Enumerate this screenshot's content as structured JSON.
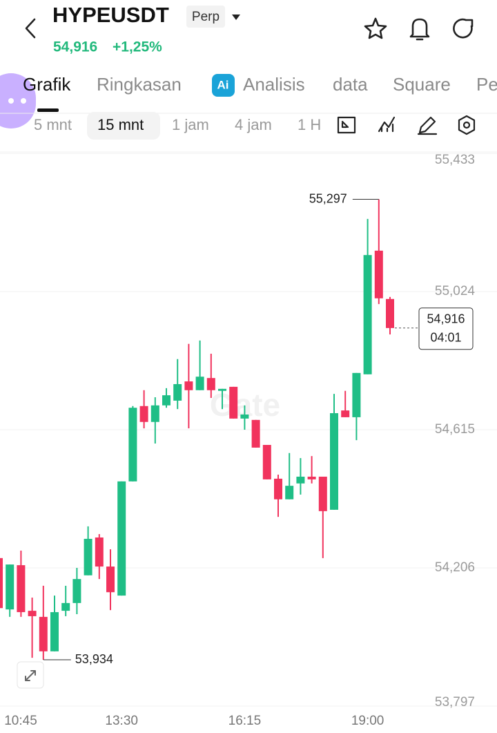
{
  "header": {
    "symbol": "HYPEUSDT",
    "badge": "Perp",
    "price": "54,916",
    "change": "+1,25%"
  },
  "tabs": [
    "Grafik",
    "Ringkasan",
    "Analisis",
    "data",
    "Square",
    "Pe"
  ],
  "intervals": [
    "5 mnt",
    "15 mnt",
    "1 jam",
    "4 jam",
    "1 H"
  ],
  "watermark": "Gate",
  "chart_data": {
    "type": "candlestick",
    "categories": [
      "10:45",
      null,
      null,
      null,
      null,
      null,
      null,
      null,
      null,
      null,
      null,
      "13:30",
      null,
      null,
      null,
      null,
      null,
      null,
      null,
      null,
      null,
      null,
      "16:15",
      null,
      null,
      null,
      null,
      null,
      null,
      null,
      null,
      null,
      null,
      "19:00",
      null,
      null
    ],
    "open": [
      54.235,
      54.083,
      54.214,
      54.079,
      54.061,
      53.959,
      54.079,
      54.102,
      54.184,
      54.296,
      54.21,
      54.124,
      54.462,
      54.685,
      54.638,
      54.687,
      54.701,
      54.758,
      54.732,
      54.768,
      54.73,
      54.742,
      54.648,
      54.644,
      54.57,
      54.47,
      54.409,
      54.456,
      54.476,
      54.476,
      54.378,
      54.672,
      54.652,
      54.779,
      55.145,
      55.002
    ],
    "high": [
      54.235,
      54.216,
      54.257,
      54.118,
      54.153,
      54.124,
      54.153,
      54.206,
      54.329,
      54.306,
      54.261,
      54.462,
      54.685,
      54.732,
      54.711,
      54.738,
      54.824,
      54.869,
      54.879,
      54.84,
      54.736,
      54.742,
      54.687,
      54.644,
      54.57,
      54.482,
      54.546,
      54.531,
      54.537,
      54.476,
      54.721,
      54.73,
      54.783,
      55.239,
      55.297,
      55.008
    ],
    "low": [
      54.061,
      54.061,
      54.061,
      53.94,
      53.934,
      53.959,
      54.063,
      54.069,
      54.184,
      54.173,
      54.081,
      54.124,
      54.462,
      54.619,
      54.574,
      54.68,
      54.676,
      54.619,
      54.732,
      54.709,
      54.676,
      54.648,
      54.615,
      54.562,
      54.468,
      54.357,
      54.409,
      54.423,
      54.456,
      54.235,
      54.378,
      54.652,
      54.584,
      54.779,
      54.987,
      54.897
    ],
    "close": [
      54.087,
      54.216,
      54.075,
      54.063,
      53.959,
      54.075,
      54.102,
      54.173,
      54.292,
      54.21,
      54.134,
      54.462,
      54.68,
      54.638,
      54.687,
      54.717,
      54.75,
      54.732,
      54.772,
      54.732,
      54.736,
      54.648,
      54.66,
      54.562,
      54.468,
      54.409,
      54.449,
      54.476,
      54.468,
      54.374,
      54.664,
      54.652,
      54.783,
      55.132,
      55.004,
      54.916
    ],
    "up_color": "#1fbe86",
    "down_color": "#f1335d",
    "ylim": [
      53.797,
      55.433
    ],
    "yticks": [
      {
        "value": 55.433,
        "label": "55,433"
      },
      {
        "value": 55.024,
        "label": "55,024"
      },
      {
        "value": 54.615,
        "label": "54,615"
      },
      {
        "value": 54.206,
        "label": "54,206"
      },
      {
        "value": 53.797,
        "label": "53,797"
      }
    ],
    "grid": true,
    "max_label": "55,297",
    "min_label": "53,934",
    "last_price_label": "54,916",
    "countdown": "04:01"
  }
}
